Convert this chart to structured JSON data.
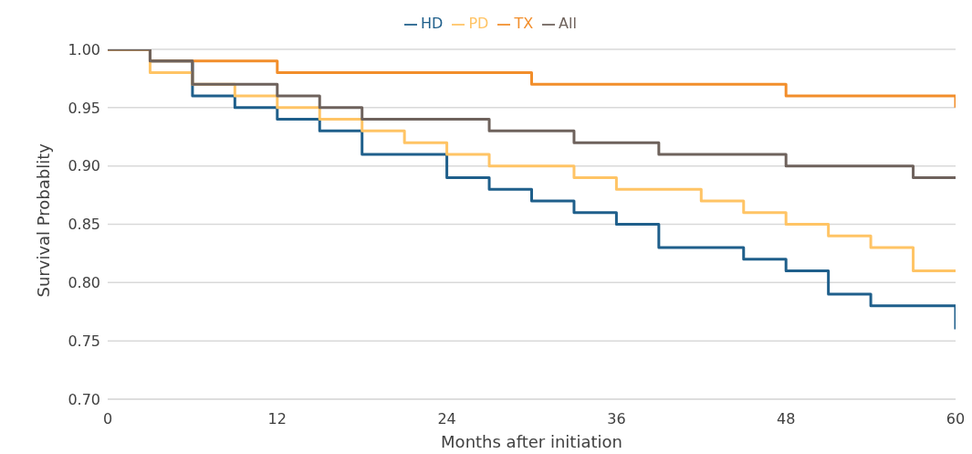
{
  "chart_data": {
    "type": "step",
    "xlabel": "Months after initiation",
    "ylabel": "Survival Probablity",
    "series": [
      {
        "name": "HD",
        "color": "#1f5f8b",
        "x": [
          0,
          3,
          6,
          9,
          12,
          15,
          18,
          24,
          27,
          30,
          33,
          36,
          39,
          45,
          48,
          51,
          54,
          60
        ],
        "values": [
          1.0,
          0.99,
          0.96,
          0.95,
          0.94,
          0.93,
          0.91,
          0.89,
          0.88,
          0.87,
          0.86,
          0.85,
          0.83,
          0.82,
          0.81,
          0.79,
          0.78,
          0.76
        ]
      },
      {
        "name": "PD",
        "color": "#ffc465",
        "x": [
          0,
          3,
          6,
          9,
          12,
          15,
          18,
          21,
          24,
          27,
          33,
          36,
          42,
          45,
          48,
          51,
          54,
          57,
          60
        ],
        "values": [
          1.0,
          0.98,
          0.97,
          0.96,
          0.95,
          0.94,
          0.93,
          0.92,
          0.91,
          0.9,
          0.89,
          0.88,
          0.87,
          0.86,
          0.85,
          0.84,
          0.83,
          0.81,
          0.81
        ]
      },
      {
        "name": "TX",
        "color": "#f28e2b",
        "x": [
          0,
          3,
          12,
          30,
          48,
          60
        ],
        "values": [
          1.0,
          0.99,
          0.98,
          0.97,
          0.96,
          0.95
        ]
      },
      {
        "name": "All",
        "color": "#6e625c",
        "x": [
          0,
          3,
          6,
          12,
          15,
          18,
          27,
          33,
          39,
          48,
          57,
          60
        ],
        "values": [
          1.0,
          0.99,
          0.97,
          0.96,
          0.95,
          0.94,
          0.93,
          0.92,
          0.91,
          0.9,
          0.89,
          0.89
        ]
      }
    ],
    "xlim": [
      0,
      60
    ],
    "xticks": [
      0,
      12,
      24,
      36,
      48,
      60
    ],
    "ylim": [
      0.7,
      1.0
    ],
    "yticks": [
      {
        "value": 0.7,
        "label": "0.70"
      },
      {
        "value": 0.75,
        "label": "0.75"
      },
      {
        "value": 0.8,
        "label": "0.80"
      },
      {
        "value": 0.85,
        "label": "0.85"
      },
      {
        "value": 0.9,
        "label": "0.90"
      },
      {
        "value": 0.95,
        "label": "0.95"
      },
      {
        "value": 1.0,
        "label": "1.00"
      }
    ],
    "grid": "y",
    "legend": "top",
    "marker": "none",
    "line_style": "solid"
  }
}
